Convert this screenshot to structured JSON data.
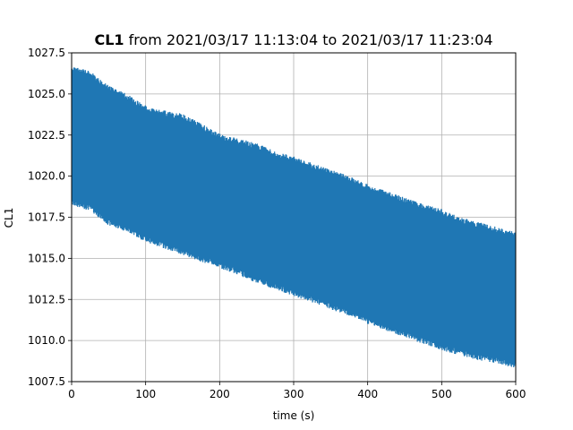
{
  "chart_data": {
    "type": "line",
    "title_bold": "CL1",
    "title_rest": " from 2021/03/17 11:13:04 to 2021/03/17 11:23:04",
    "xlabel": "time (s)",
    "ylabel": "CL1",
    "xlim": [
      0,
      600
    ],
    "ylim": [
      1007.5,
      1027.5
    ],
    "x_ticks": [
      0,
      100,
      200,
      300,
      400,
      500,
      600
    ],
    "y_ticks": [
      1007.5,
      1010.0,
      1012.5,
      1015.0,
      1017.5,
      1020.0,
      1022.5,
      1025.0,
      1027.5
    ],
    "grid": true,
    "legend": "none",
    "series": [
      {
        "color": "#1f77b4",
        "envelope": {
          "x": [
            0,
            25,
            50,
            75,
            100,
            125,
            150,
            175,
            200,
            225,
            250,
            275,
            300,
            325,
            350,
            375,
            400,
            425,
            450,
            475,
            500,
            525,
            550,
            575,
            600
          ],
          "upper": [
            1026.7,
            1026.4,
            1025.5,
            1025.0,
            1024.3,
            1024.0,
            1023.8,
            1023.2,
            1022.6,
            1022.3,
            1022.0,
            1021.5,
            1021.2,
            1020.8,
            1020.4,
            1020.0,
            1019.5,
            1019.1,
            1018.7,
            1018.3,
            1018.0,
            1017.5,
            1017.2,
            1016.9,
            1016.6
          ],
          "lower": [
            1018.2,
            1017.9,
            1017.0,
            1016.6,
            1016.0,
            1015.6,
            1015.2,
            1014.8,
            1014.4,
            1014.0,
            1013.5,
            1013.1,
            1012.7,
            1012.3,
            1011.9,
            1011.5,
            1011.0,
            1010.6,
            1010.2,
            1009.8,
            1009.4,
            1009.1,
            1008.8,
            1008.6,
            1008.3
          ]
        }
      }
    ]
  }
}
